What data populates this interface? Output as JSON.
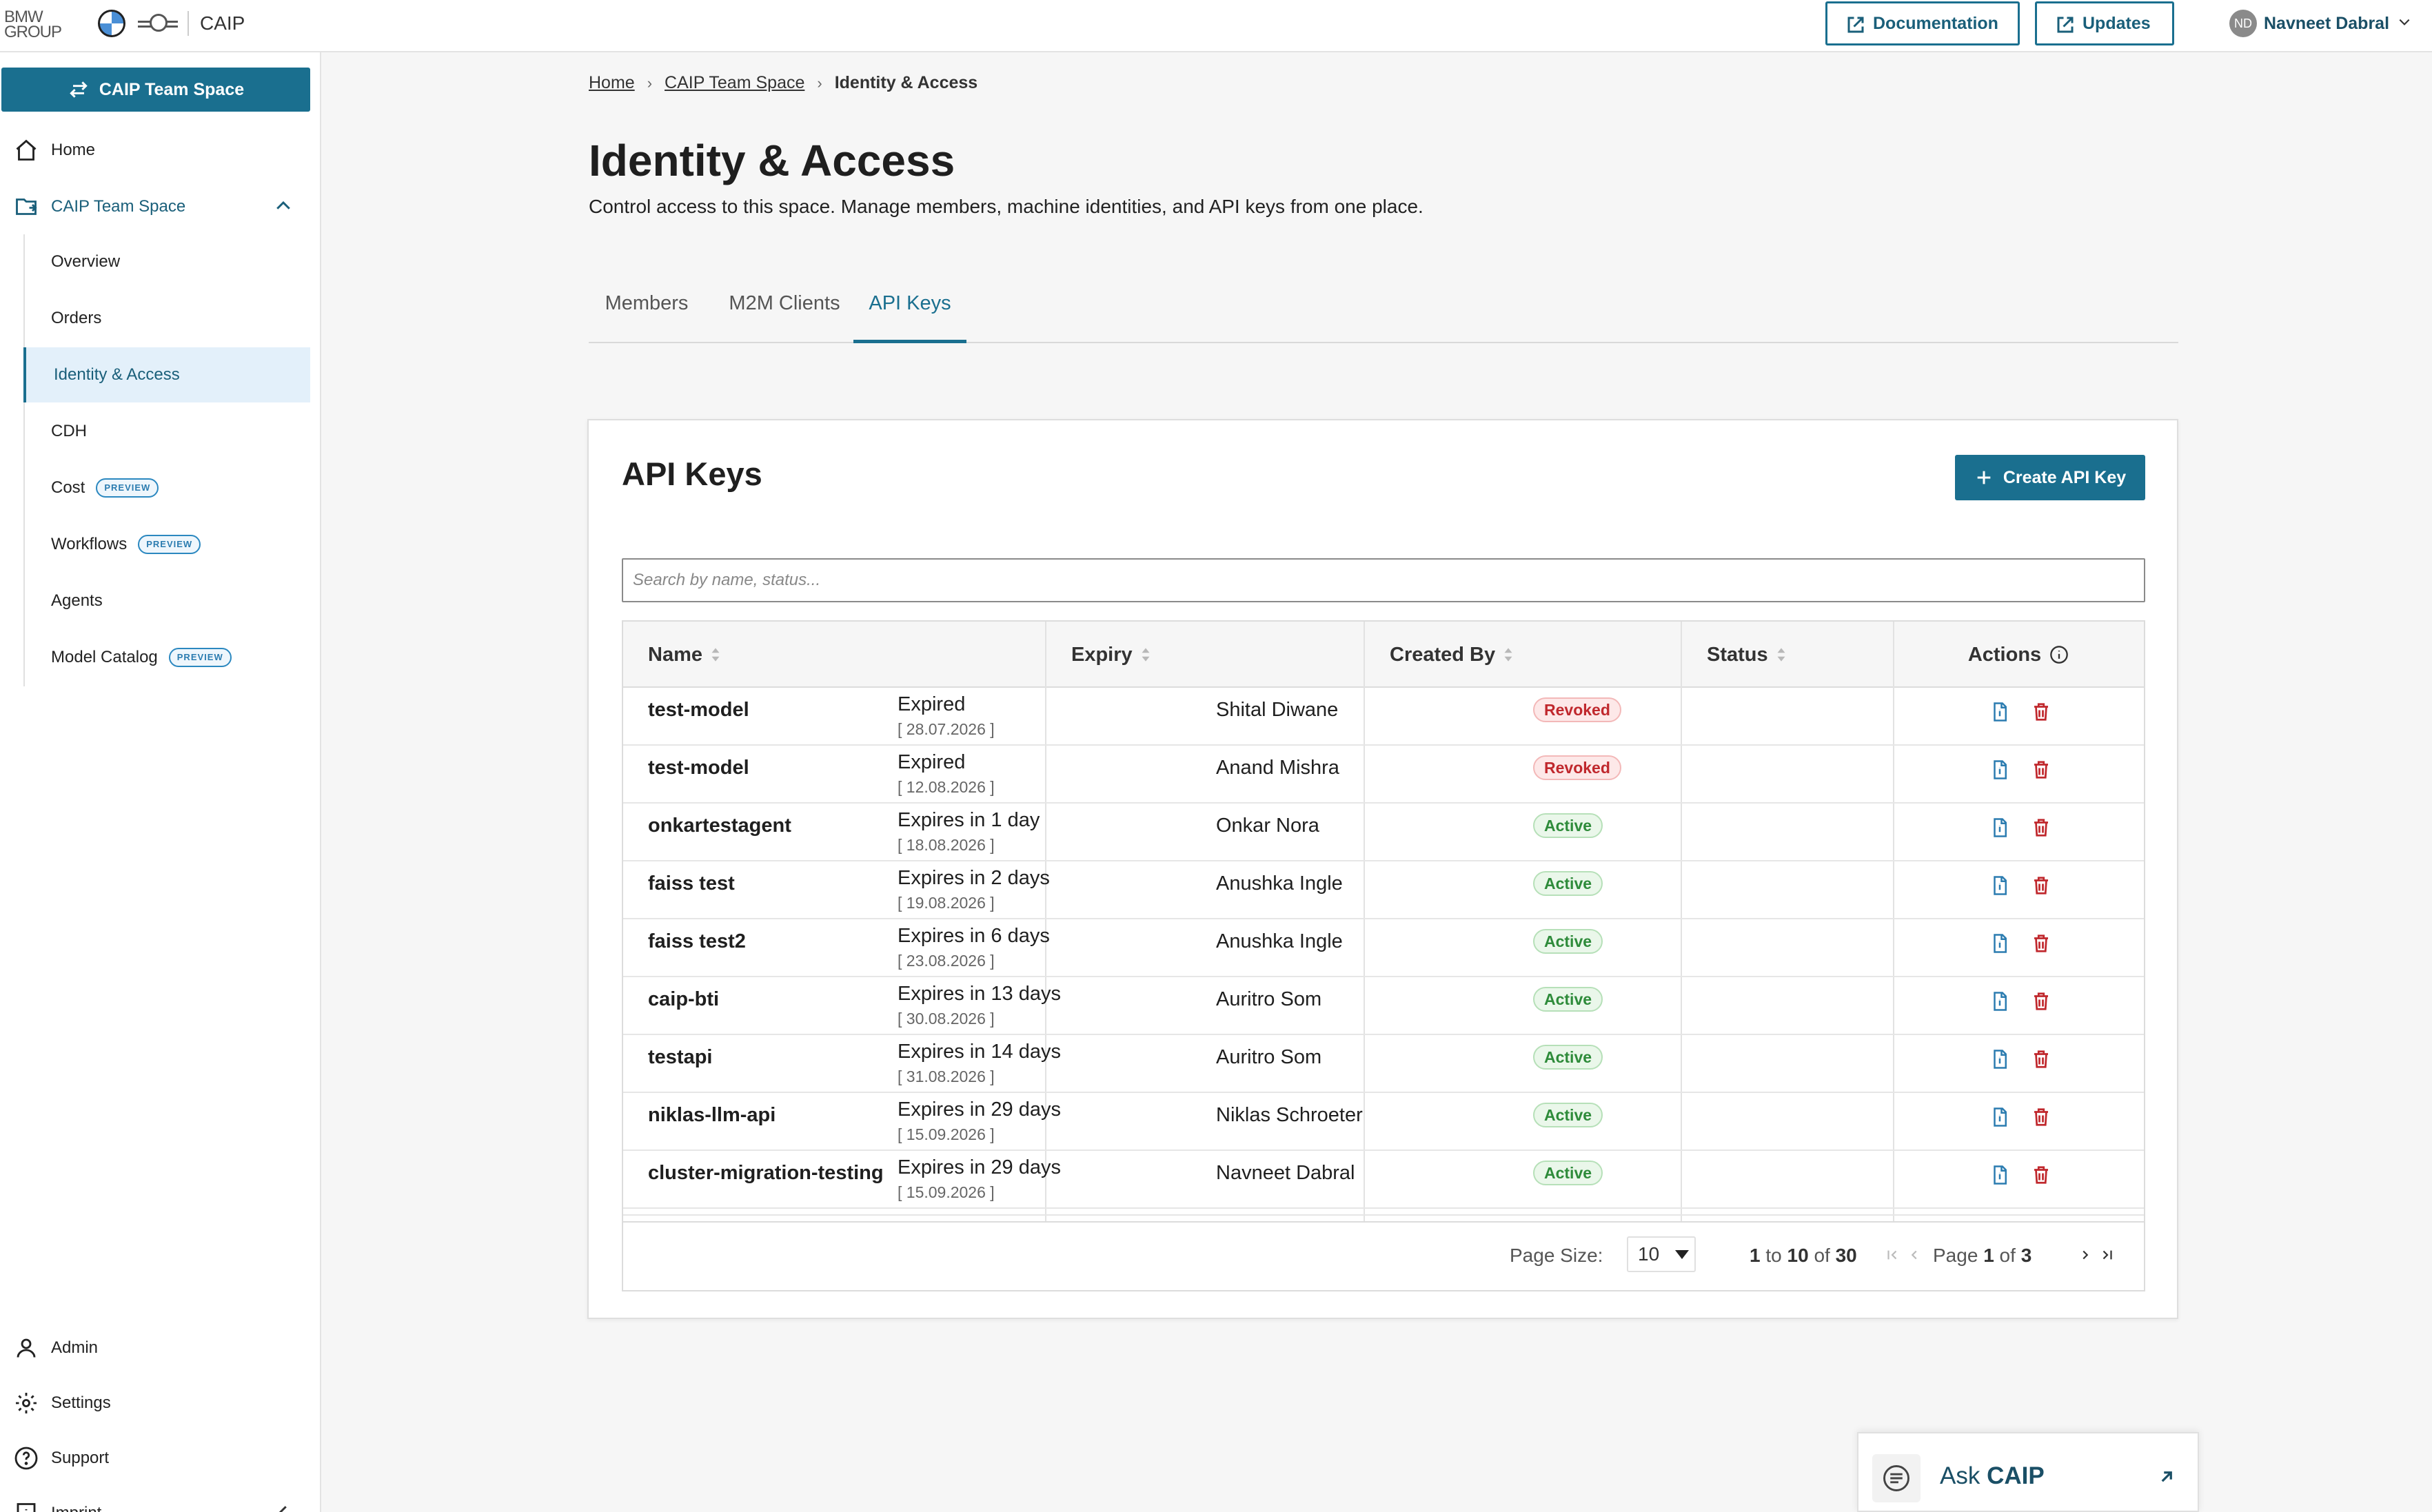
{
  "brand": {
    "group_line1": "BMW",
    "group_line2": "GROUP",
    "app_name": "CAIP"
  },
  "header": {
    "documentation_label": "Documentation",
    "updates_label": "Updates",
    "user_initials": "ND",
    "user_name": "Navneet Dabral"
  },
  "sidebar": {
    "space_button_label": "CAIP Team Space",
    "home_label": "Home",
    "space_label": "CAIP Team Space",
    "preview_badge": "PREVIEW",
    "sub_items": [
      {
        "label": "Overview"
      },
      {
        "label": "Orders"
      },
      {
        "label": "Identity & Access"
      },
      {
        "label": "CDH"
      },
      {
        "label": "Cost"
      },
      {
        "label": "Workflows"
      },
      {
        "label": "Agents"
      },
      {
        "label": "Model Catalog"
      }
    ],
    "bottom_items": [
      {
        "label": "Admin"
      },
      {
        "label": "Settings"
      },
      {
        "label": "Support"
      },
      {
        "label": "Imprint"
      }
    ]
  },
  "breadcrumb": {
    "home": "Home",
    "space": "CAIP Team Space",
    "current": "Identity & Access"
  },
  "page": {
    "title": "Identity & Access",
    "description": "Control access to this space. Manage members, machine identities, and API keys from one place."
  },
  "tabs": [
    {
      "label": "Members"
    },
    {
      "label": "M2M Clients"
    },
    {
      "label": "API Keys"
    }
  ],
  "api_keys": {
    "title": "API Keys",
    "create_label": "Create API Key",
    "search_placeholder": "Search by name, status...",
    "columns": {
      "name": "Name",
      "expiry": "Expiry",
      "created_by": "Created By",
      "status": "Status",
      "actions": "Actions"
    },
    "rows": [
      {
        "name": "test-model",
        "expiry": "Expired",
        "date": "[ 28.07.2026 ]",
        "created_by": "Shital Diwane",
        "status": "Revoked"
      },
      {
        "name": "test-model",
        "expiry": "Expired",
        "date": "[ 12.08.2026 ]",
        "created_by": "Anand Mishra",
        "status": "Revoked"
      },
      {
        "name": "onkartestagent",
        "expiry": "Expires in 1 day",
        "date": "[ 18.08.2026 ]",
        "created_by": "Onkar Nora",
        "status": "Active"
      },
      {
        "name": "faiss test",
        "expiry": "Expires in 2 days",
        "date": "[ 19.08.2026 ]",
        "created_by": "Anushka Ingle",
        "status": "Active"
      },
      {
        "name": "faiss test2",
        "expiry": "Expires in 6 days",
        "date": "[ 23.08.2026 ]",
        "created_by": "Anushka Ingle",
        "status": "Active"
      },
      {
        "name": "caip-bti",
        "expiry": "Expires in 13 days",
        "date": "[ 30.08.2026 ]",
        "created_by": "Auritro Som",
        "status": "Active"
      },
      {
        "name": "testapi",
        "expiry": "Expires in 14 days",
        "date": "[ 31.08.2026 ]",
        "created_by": "Auritro Som",
        "status": "Active"
      },
      {
        "name": "niklas-llm-api",
        "expiry": "Expires in 29 days",
        "date": "[ 15.09.2026 ]",
        "created_by": "Niklas Schroeter",
        "status": "Active"
      },
      {
        "name": "cluster-migration-testing",
        "expiry": "Expires in 29 days",
        "date": "[ 15.09.2026 ]",
        "created_by": "Navneet Dabral",
        "status": "Active"
      }
    ],
    "pagination": {
      "page_size_label": "Page Size:",
      "page_size": "10",
      "range_from": "1",
      "range_to_word": "to",
      "range_to": "10",
      "of_word": "of",
      "total": "30",
      "page_word": "Page",
      "page_current": "1",
      "page_total": "3"
    }
  },
  "ask": {
    "prefix": "Ask",
    "name": "CAIP"
  },
  "colors": {
    "accent": "#1a6f8f",
    "revoked": "#c0282d",
    "active": "#2e8b3a"
  }
}
